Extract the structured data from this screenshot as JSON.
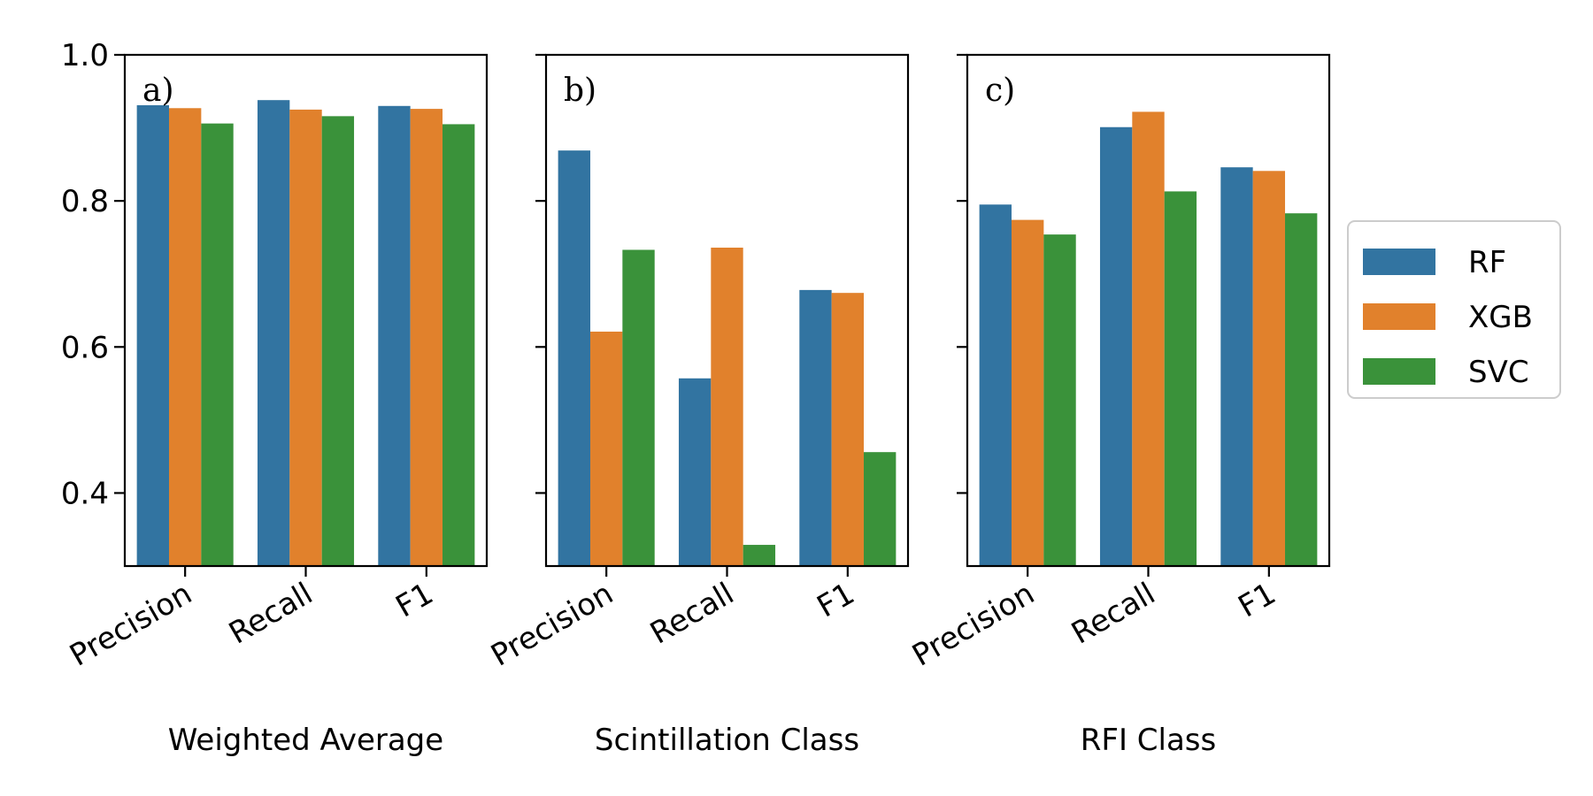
{
  "colors": {
    "RF": "#3274a1",
    "XGB": "#e1812c",
    "SVC": "#3a923a"
  },
  "legend": {
    "placement": "outside-right",
    "entries": [
      "RF",
      "XGB",
      "SVC"
    ]
  },
  "chart_data": [
    {
      "type": "bar",
      "panel_label": "a)",
      "xlabel": "Weighted Average",
      "ylabel": "",
      "ylim": [
        0.3,
        1.0
      ],
      "yticks": [
        "0.4",
        "0.6",
        "0.8",
        "1.0"
      ],
      "categories": [
        "Precision",
        "Recall",
        "F1"
      ],
      "grid": false,
      "series": [
        {
          "name": "RF",
          "values": [
            0.931,
            0.938,
            0.93
          ]
        },
        {
          "name": "XGB",
          "values": [
            0.927,
            0.925,
            0.926
          ]
        },
        {
          "name": "SVC",
          "values": [
            0.906,
            0.916,
            0.905
          ]
        }
      ]
    },
    {
      "type": "bar",
      "panel_label": "b)",
      "xlabel": "Scintillation Class",
      "ylabel": "",
      "ylim": [
        0.3,
        1.0
      ],
      "categories": [
        "Precision",
        "Recall",
        "F1"
      ],
      "grid": false,
      "series": [
        {
          "name": "RF",
          "values": [
            0.869,
            0.557,
            0.678
          ]
        },
        {
          "name": "XGB",
          "values": [
            0.621,
            0.736,
            0.674
          ]
        },
        {
          "name": "SVC",
          "values": [
            0.733,
            0.329,
            0.456
          ]
        }
      ]
    },
    {
      "type": "bar",
      "panel_label": "c)",
      "xlabel": "RFI Class",
      "ylabel": "",
      "ylim": [
        0.3,
        1.0
      ],
      "categories": [
        "Precision",
        "Recall",
        "F1"
      ],
      "grid": false,
      "series": [
        {
          "name": "RF",
          "values": [
            0.795,
            0.901,
            0.846
          ]
        },
        {
          "name": "XGB",
          "values": [
            0.774,
            0.922,
            0.841
          ]
        },
        {
          "name": "SVC",
          "values": [
            0.754,
            0.813,
            0.783
          ]
        }
      ]
    }
  ]
}
